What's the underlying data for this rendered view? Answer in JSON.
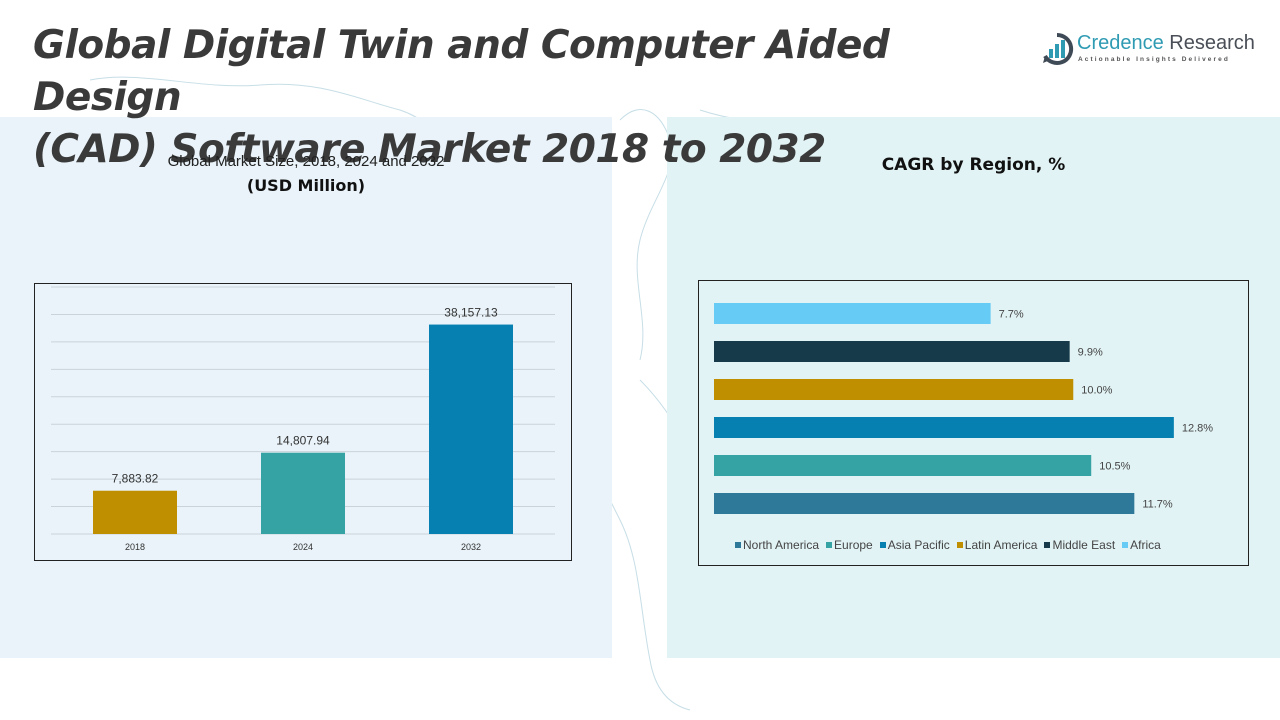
{
  "header": {
    "title_line1": "Global Digital Twin and Computer Aided Design",
    "title_line2": "(CAD) Software Market 2018 to 2032"
  },
  "logo": {
    "icon": "bar-chart-circle-icon",
    "name_part1": "Credence",
    "name_part2": "Research",
    "tagline": "Actionable Insights Delivered"
  },
  "left_panel": {
    "subtitle": "Global Market Size, 2018, 2024 and 2032",
    "unit": "(USD Million)"
  },
  "right_panel": {
    "title": "CAGR by Region, %"
  },
  "colors": {
    "gold": "#bf8f00",
    "teal": "#35a3a3",
    "blue": "#0580b0",
    "steel_blue": "#2e7899",
    "navy": "#173a4a",
    "light_blue": "#66ccf5"
  },
  "chart_data": [
    {
      "type": "bar",
      "title": "Global Market Size, 2018, 2024 and 2032",
      "ylabel": "USD Million",
      "xlabel": "",
      "categories": [
        "2018",
        "2024",
        "2032"
      ],
      "values": [
        7883.82,
        14807.94,
        38157.13
      ],
      "value_labels": [
        "7,883.82",
        "14,807.94",
        "38,157.13"
      ],
      "bar_colors": [
        "#bf8f00",
        "#35a3a3",
        "#0580b0"
      ],
      "ylim": [
        0,
        45000
      ],
      "grid": true,
      "legend": "none"
    },
    {
      "type": "bar",
      "orientation": "horizontal",
      "title": "CAGR by Region, %",
      "categories": [
        "North America",
        "Europe",
        "Asia Pacific",
        "Latin America",
        "Middle East",
        "Africa"
      ],
      "values": [
        11.7,
        10.5,
        12.8,
        10.0,
        9.9,
        7.7
      ],
      "value_labels": [
        "11.7%",
        "10.5%",
        "12.8%",
        "10.0%",
        "9.9%",
        "7.7%"
      ],
      "bar_colors": [
        "#2e7899",
        "#35a3a3",
        "#0580b0",
        "#bf8f00",
        "#173a4a",
        "#66ccf5"
      ],
      "xlim": [
        0,
        13.5
      ],
      "grid": false,
      "legend": "bottom"
    }
  ]
}
